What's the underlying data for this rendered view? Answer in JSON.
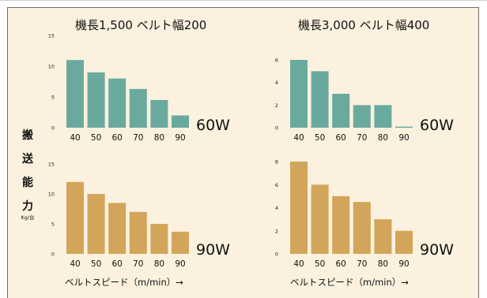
{
  "chart_data": [
    {
      "type": "bar",
      "title": "機長1,500 ベルト幅200",
      "power_label": "60W",
      "categories": [
        "40",
        "50",
        "60",
        "70",
        "80",
        "90"
      ],
      "values": [
        11,
        9,
        8,
        6.3,
        4.5,
        2
      ],
      "yticks": [
        "0",
        "5",
        "10",
        "15"
      ],
      "ylim": [
        0,
        15
      ],
      "color": "#6aaa9e"
    },
    {
      "type": "bar",
      "title": "機長3,000 ベルト幅400",
      "power_label": "60W",
      "categories": [
        "40",
        "50",
        "60",
        "70",
        "80",
        "90"
      ],
      "values": [
        6,
        5,
        3,
        2,
        2,
        0.1
      ],
      "yticks": [
        "0",
        "2",
        "4",
        "6"
      ],
      "ylim": [
        0,
        6
      ],
      "color": "#6aaa9e"
    },
    {
      "type": "bar",
      "title": "",
      "power_label": "90W",
      "categories": [
        "40",
        "50",
        "60",
        "70",
        "80",
        "90"
      ],
      "values": [
        12,
        10,
        8.5,
        7,
        5,
        3.7
      ],
      "yticks": [
        "0",
        "5",
        "10",
        "15"
      ],
      "ylim": [
        0,
        15
      ],
      "color": "#d2a55a"
    },
    {
      "type": "bar",
      "title": "",
      "power_label": "90W",
      "categories": [
        "40",
        "50",
        "60",
        "70",
        "80",
        "90"
      ],
      "values": [
        8,
        6,
        5,
        4.5,
        3,
        2
      ],
      "yticks": [
        "0",
        "2",
        "4",
        "6",
        "8"
      ],
      "ylim": [
        0,
        8
      ],
      "color": "#d2a55a"
    }
  ],
  "ylabel_chars": [
    "搬",
    "送",
    "能",
    "力"
  ],
  "ylabel_unit": "Kg/台",
  "xlabels": [
    "ベルトスピード（m/min）→",
    "ベルトスピード（m/min）→"
  ]
}
